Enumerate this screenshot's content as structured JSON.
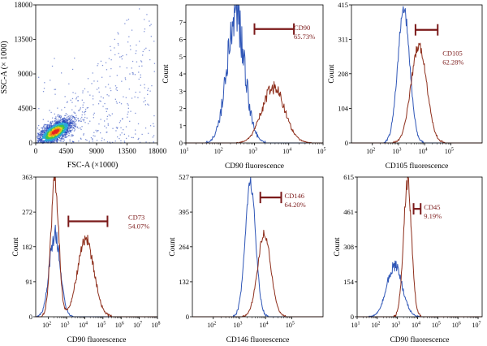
{
  "colors": {
    "blue": "#2f56b7",
    "red": "#8e2e1b",
    "gate": "#7b1a1a",
    "axis": "#000000",
    "density": [
      "#1f3fb8",
      "#2aa8d8",
      "#3cc44a",
      "#e6d21d",
      "#f08a1c",
      "#e52420"
    ]
  },
  "chart_data": [
    {
      "id": "a",
      "type": "scatter",
      "xlabel": "FSC-A (×1000)",
      "ylabel": "SSC-A (× 1000)",
      "xticks": [
        0,
        4500,
        9000,
        13500,
        18000
      ],
      "yticks": [
        0,
        4500,
        9000,
        13500,
        18000
      ],
      "xlim": [
        0,
        18000
      ],
      "ylim": [
        0,
        18000
      ],
      "density_center": [
        2800,
        1500
      ]
    },
    {
      "id": "b",
      "type": "histogram",
      "xlabel": "CD90 fluorescence",
      "ylabel": "Count",
      "xscale": "log",
      "xticks": [
        {
          "exp": 1,
          "label": "10",
          "sup": "1"
        },
        {
          "exp": 2,
          "label": "10",
          "sup": "2"
        },
        {
          "exp": 3,
          "label": "10",
          "sup": "3"
        },
        {
          "exp": 4,
          "label": "10",
          "sup": "4"
        },
        {
          "exp": 5,
          "label": "10",
          "sup": "5"
        }
      ],
      "xlim": [
        1,
        5
      ],
      "yticks": [
        0,
        1,
        2,
        3,
        4,
        5,
        6,
        7
      ],
      "ylim": [
        0,
        8
      ],
      "series": [
        {
          "color": "blue",
          "peaks": [
            {
              "center": 2.45,
              "sigma": 0.26,
              "height": 7.6
            }
          ],
          "noise": 0.22
        },
        {
          "color": "red",
          "peaks": [
            {
              "center": 3.55,
              "sigma": 0.33,
              "height": 3.2
            }
          ],
          "noise": 0.12
        }
      ],
      "gate": {
        "x1": 3.0,
        "x2": 4.15,
        "y": 6.6
      },
      "annotation": [
        "CD90",
        "65.73%"
      ]
    },
    {
      "id": "c",
      "type": "histogram",
      "xlabel": "CD105 fluorescence",
      "ylabel": "Count",
      "xscale": "log",
      "xticks": [
        {
          "exp": 2,
          "label": "10",
          "sup": "2"
        },
        {
          "exp": 3,
          "label": "10",
          "sup": "3"
        },
        {
          "exp": 4,
          "label": "10",
          "sup": "4"
        },
        {
          "exp": 5,
          "label": "10",
          "sup": "5"
        }
      ],
      "xlim": [
        1.2,
        6.2
      ],
      "yticks": [
        0,
        104,
        208,
        311,
        415
      ],
      "ylim": [
        0,
        415
      ],
      "series": [
        {
          "color": "blue",
          "peaks": [
            {
              "center": 3.2,
              "sigma": 0.23,
              "height": 400
            }
          ],
          "noise": 0.05
        },
        {
          "color": "red",
          "peaks": [
            {
              "center": 3.78,
              "sigma": 0.3,
              "height": 290
            }
          ],
          "noise": 0.05
        }
      ],
      "gate": {
        "x1": 3.65,
        "x2": 4.5,
        "y": 340
      },
      "annotation": [
        "CD105",
        "62.28%"
      ]
    },
    {
      "id": "d",
      "type": "histogram",
      "xlabel": "CD90 fluorescence",
      "ylabel": "Count",
      "xscale": "log",
      "xticks": [
        {
          "exp": 2,
          "label": "10",
          "sup": "2"
        },
        {
          "exp": 3,
          "label": "10",
          "sup": "3"
        },
        {
          "exp": 4,
          "label": "10",
          "sup": "4"
        },
        {
          "exp": 5,
          "label": "10",
          "sup": "5"
        },
        {
          "exp": 6,
          "label": "10",
          "sup": "6"
        },
        {
          "exp": 7,
          "label": "10",
          "sup": "7"
        },
        {
          "exp": 8,
          "label": "10",
          "sup": "8"
        }
      ],
      "xlim": [
        1.3,
        8
      ],
      "yticks": [
        0,
        91,
        182,
        272,
        363
      ],
      "ylim": [
        0,
        363
      ],
      "series": [
        {
          "color": "blue",
          "peaks": [
            {
              "center": 2.35,
              "sigma": 0.3,
              "height": 215
            }
          ],
          "noise": 0.12
        },
        {
          "color": "red",
          "peaks": [
            {
              "center": 2.35,
              "sigma": 0.22,
              "height": 350
            },
            {
              "center": 4.05,
              "sigma": 0.45,
              "height": 200
            }
          ],
          "noise": 0.08
        }
      ],
      "gate": {
        "x1": 3.1,
        "x2": 5.25,
        "y": 248
      },
      "annotation": [
        "CD73",
        "54.07%"
      ]
    },
    {
      "id": "e",
      "type": "histogram",
      "xlabel": "CD146 fluorescence",
      "ylabel": "Count",
      "xscale": "log",
      "xticks": [
        {
          "exp": 2,
          "label": "10",
          "sup": "2"
        },
        {
          "exp": 3,
          "label": "10",
          "sup": "3"
        },
        {
          "exp": 4,
          "label": "10",
          "sup": "4"
        },
        {
          "exp": 5,
          "label": "10",
          "sup": "5"
        }
      ],
      "xlim": [
        1.2,
        6.2
      ],
      "yticks": [
        0,
        132,
        264,
        395,
        527
      ],
      "ylim": [
        0,
        527
      ],
      "series": [
        {
          "color": "blue",
          "peaks": [
            {
              "center": 3.42,
              "sigma": 0.2,
              "height": 505
            }
          ],
          "noise": 0.05
        },
        {
          "color": "red",
          "peaks": [
            {
              "center": 3.95,
              "sigma": 0.25,
              "height": 315
            }
          ],
          "noise": 0.05
        }
      ],
      "gate": {
        "x1": 3.8,
        "x2": 4.6,
        "y": 450
      },
      "annotation": [
        "CD146",
        "64.20%"
      ]
    },
    {
      "id": "f",
      "type": "histogram",
      "xlabel": "CD90 fluorescence",
      "ylabel": "Count",
      "xscale": "log",
      "xticks": [
        {
          "exp": 1,
          "label": "10",
          "sup": "1"
        },
        {
          "exp": 2,
          "label": "10",
          "sup": "2"
        },
        {
          "exp": 3,
          "label": "10",
          "sup": "3"
        },
        {
          "exp": 4,
          "label": "10",
          "sup": "4"
        },
        {
          "exp": 5,
          "label": "10",
          "sup": "5"
        },
        {
          "exp": 6,
          "label": "10",
          "sup": "6"
        },
        {
          "exp": 7,
          "label": "10",
          "sup": "7"
        }
      ],
      "xlim": [
        1,
        7.2
      ],
      "yticks": [
        0,
        154,
        308,
        461,
        615
      ],
      "ylim": [
        0,
        615
      ],
      "series": [
        {
          "color": "blue",
          "peaks": [
            {
              "center": 2.85,
              "sigma": 0.38,
              "height": 225
            }
          ],
          "noise": 0.12
        },
        {
          "color": "red",
          "peaks": [
            {
              "center": 3.5,
              "sigma": 0.2,
              "height": 595
            }
          ],
          "noise": 0.06
        }
      ],
      "gate": {
        "x1": 3.8,
        "x2": 4.15,
        "y": 475
      },
      "annotation": [
        "CD45",
        "9.19%"
      ]
    }
  ]
}
